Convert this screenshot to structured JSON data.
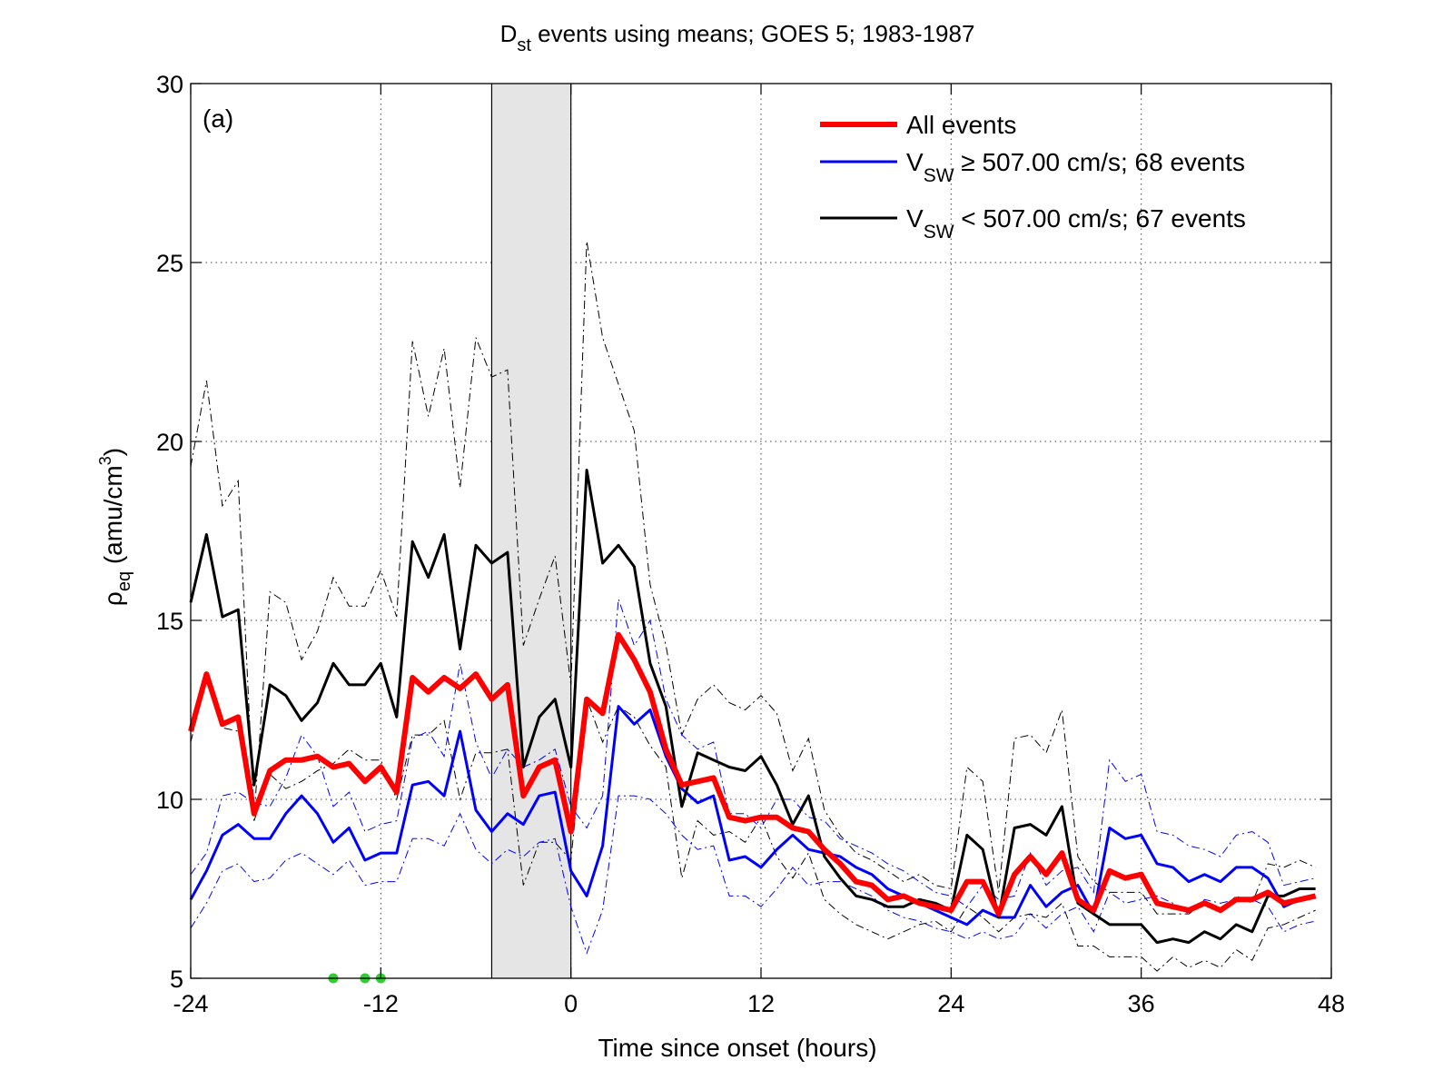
{
  "chart_data": {
    "type": "line",
    "title": {
      "main": "D",
      "sub": "st",
      "rest": " events using means; GOES 5; 1983-1987"
    },
    "panel_label": "(a)",
    "xlabel": "Time since onset (hours)",
    "ylabel": {
      "main": "ρ",
      "sub": "eq",
      "unit": " (amu/cm",
      "sup": "3",
      "close": ")"
    },
    "xlim": [
      -24,
      48
    ],
    "ylim": [
      5,
      30
    ],
    "xticks": [
      -24,
      -12,
      0,
      12,
      24,
      36,
      48
    ],
    "yticks": [
      5,
      10,
      15,
      20,
      25,
      30
    ],
    "grid": true,
    "legend_position": "top-right",
    "shaded_interval": [
      -5,
      0
    ],
    "green_markers": {
      "color": "#33cc33",
      "x": [
        -15,
        -13,
        -12
      ],
      "y": [
        5,
        5,
        5
      ]
    },
    "x": [
      -24,
      -23,
      -22,
      -21,
      -20,
      -19,
      -18,
      -17,
      -16,
      -15,
      -14,
      -13,
      -12,
      -11,
      -10,
      -9,
      -8,
      -7,
      -6,
      -5,
      -4,
      -3,
      -2,
      -1,
      0,
      1,
      2,
      3,
      4,
      5,
      6,
      7,
      8,
      9,
      10,
      11,
      12,
      13,
      14,
      15,
      16,
      17,
      18,
      19,
      20,
      21,
      22,
      23,
      24,
      25,
      26,
      27,
      28,
      29,
      30,
      31,
      32,
      33,
      34,
      35,
      36,
      37,
      38,
      39,
      40,
      41,
      42,
      43,
      44,
      45,
      46,
      47
    ],
    "series": [
      {
        "name": "All events",
        "legend": {
          "main": "All events",
          "sub": "",
          "rest": ""
        },
        "color": "#ff0000",
        "width": 6,
        "values": [
          11.9,
          13.5,
          12.1,
          12.3,
          9.6,
          10.8,
          11.1,
          11.1,
          11.2,
          10.9,
          11.0,
          10.5,
          10.9,
          10.2,
          13.4,
          13.0,
          13.4,
          13.1,
          13.5,
          12.8,
          13.2,
          10.1,
          10.9,
          11.1,
          9.1,
          12.8,
          12.4,
          14.6,
          13.9,
          13.0,
          11.4,
          10.4,
          10.5,
          10.6,
          9.5,
          9.4,
          9.5,
          9.5,
          9.2,
          9.1,
          8.6,
          8.2,
          7.7,
          7.6,
          7.2,
          7.3,
          7.1,
          7.0,
          6.9,
          7.7,
          7.7,
          6.8,
          7.9,
          8.4,
          7.9,
          8.5,
          7.2,
          6.9,
          8.0,
          7.8,
          7.9,
          7.1,
          7.0,
          6.9,
          7.1,
          6.9,
          7.2,
          7.2,
          7.4,
          7.1,
          7.2,
          7.3
        ]
      },
      {
        "name": "V_SW >= 507.00 cm/s; 68 events",
        "legend": {
          "main": "V",
          "sub": "SW",
          "rest": " ≥ 507.00 cm/s; 68 events"
        },
        "color": "#0000ff",
        "width": 3,
        "values": [
          7.2,
          8.0,
          9.0,
          9.3,
          8.9,
          8.9,
          9.6,
          10.1,
          9.6,
          8.8,
          9.2,
          8.3,
          8.5,
          8.5,
          10.4,
          10.5,
          10.1,
          11.9,
          9.7,
          9.1,
          9.6,
          9.3,
          10.1,
          10.2,
          8.0,
          7.3,
          8.7,
          12.6,
          12.1,
          12.5,
          11.2,
          10.3,
          9.9,
          10.1,
          8.3,
          8.4,
          8.1,
          8.6,
          9.0,
          8.6,
          8.5,
          8.4,
          8.1,
          7.9,
          7.5,
          7.3,
          7.1,
          6.9,
          6.7,
          6.5,
          6.9,
          6.7,
          6.7,
          7.6,
          7.0,
          7.4,
          7.6,
          6.8,
          9.2,
          8.9,
          9.0,
          8.2,
          8.1,
          7.7,
          7.9,
          7.7,
          8.1,
          8.1,
          7.8,
          7.0,
          7.2,
          7.3
        ]
      },
      {
        "name": "V_SW < 507.00 cm/s; 67 events",
        "legend": {
          "main": "V",
          "sub": "SW",
          "rest": " < 507.00 cm/s; 67 events"
        },
        "color": "#000000",
        "width": 3,
        "values": [
          15.5,
          17.4,
          15.1,
          15.3,
          10.4,
          13.2,
          12.9,
          12.2,
          12.7,
          13.8,
          13.2,
          13.2,
          13.8,
          12.3,
          17.2,
          16.2,
          17.4,
          14.2,
          17.1,
          16.6,
          16.9,
          10.9,
          12.3,
          12.8,
          10.9,
          19.2,
          16.6,
          17.1,
          16.5,
          13.8,
          12.6,
          9.8,
          11.3,
          11.1,
          10.9,
          10.8,
          11.2,
          10.4,
          9.3,
          10.1,
          8.4,
          7.8,
          7.3,
          7.2,
          7.0,
          7.0,
          7.2,
          7.1,
          6.9,
          9.0,
          8.6,
          6.7,
          9.2,
          9.3,
          9.0,
          9.8,
          7.1,
          6.8,
          6.5,
          6.5,
          6.5,
          6.0,
          6.1,
          6.0,
          6.3,
          6.1,
          6.5,
          6.3,
          7.3,
          7.3,
          7.5,
          7.5
        ]
      }
    ],
    "bands": [
      {
        "color": "#000000",
        "dash": "dashdot",
        "values": [
          19.3,
          21.7,
          18.2,
          18.9,
          9.5,
          15.8,
          15.5,
          13.9,
          14.7,
          16.2,
          15.4,
          15.4,
          16.4,
          15.1,
          22.8,
          20.7,
          22.6,
          18.7,
          22.9,
          21.8,
          22.0,
          14.3,
          15.6,
          16.8,
          13.2,
          25.6,
          22.9,
          21.6,
          20.3,
          16.0,
          14.3,
          11.8,
          12.8,
          13.2,
          12.7,
          12.5,
          12.9,
          12.4,
          10.8,
          11.7,
          9.7,
          9.0,
          8.5,
          8.3,
          8.0,
          7.7,
          7.9,
          7.6,
          7.5,
          10.9,
          10.5,
          7.4,
          11.7,
          11.8,
          11.3,
          12.5,
          8.4,
          7.7,
          7.4,
          7.4,
          7.4,
          6.8,
          6.8,
          6.8,
          7.1,
          6.9,
          7.3,
          7.1,
          8.2,
          8.1,
          8.3,
          8.1
        ]
      },
      {
        "color": "#000000",
        "dash": "dashdot",
        "values": [
          11.6,
          13.4,
          12.0,
          11.9,
          9.4,
          10.7,
          10.3,
          10.5,
          10.8,
          11.0,
          11.4,
          11.1,
          11.1,
          10.0,
          11.8,
          11.8,
          12.2,
          10.0,
          11.3,
          11.3,
          11.4,
          7.6,
          8.8,
          8.8,
          8.3,
          12.8,
          11.6,
          12.6,
          12.3,
          11.5,
          10.9,
          7.8,
          9.4,
          9.0,
          9.1,
          8.8,
          9.5,
          8.4,
          7.8,
          8.5,
          7.2,
          6.8,
          6.5,
          6.3,
          6.1,
          6.3,
          6.5,
          6.6,
          6.3,
          7.0,
          6.7,
          6.3,
          6.7,
          6.8,
          6.7,
          7.1,
          5.9,
          5.9,
          5.6,
          5.6,
          5.6,
          5.2,
          5.6,
          5.3,
          5.5,
          5.3,
          5.8,
          5.5,
          6.4,
          6.5,
          6.7,
          6.9
        ]
      },
      {
        "color": "#0000ff",
        "dash": "dashdot",
        "values": [
          7.9,
          8.5,
          10.1,
          10.2,
          9.9,
          9.8,
          10.6,
          11.8,
          11.2,
          9.8,
          10.2,
          9.1,
          9.3,
          9.4,
          11.7,
          11.9,
          11.2,
          13.8,
          11.6,
          10.6,
          11.4,
          10.9,
          11.1,
          11.4,
          9.8,
          9.2,
          10.1,
          15.6,
          14.3,
          15.0,
          12.8,
          11.8,
          11.4,
          11.6,
          9.6,
          9.6,
          9.2,
          10.0,
          10.0,
          9.5,
          9.4,
          8.9,
          8.7,
          8.5,
          8.2,
          8.0,
          7.7,
          7.4,
          7.3,
          7.0,
          7.6,
          7.2,
          7.3,
          8.5,
          7.6,
          8.0,
          8.1,
          7.4,
          11.1,
          10.5,
          10.7,
          9.1,
          9.0,
          8.7,
          8.6,
          8.4,
          9.0,
          9.1,
          8.8,
          7.6,
          7.7,
          7.8
        ]
      },
      {
        "color": "#0000ff",
        "dash": "dashdot",
        "values": [
          6.4,
          7.1,
          8.0,
          8.2,
          7.7,
          7.8,
          8.3,
          8.5,
          8.2,
          7.9,
          8.3,
          7.6,
          7.7,
          7.7,
          8.9,
          8.9,
          8.7,
          9.6,
          8.6,
          8.2,
          8.6,
          8.4,
          8.8,
          8.9,
          7.0,
          5.7,
          6.9,
          10.1,
          10.1,
          10.0,
          9.6,
          9.0,
          8.6,
          8.7,
          7.3,
          7.3,
          7.0,
          7.5,
          8.1,
          7.6,
          7.7,
          7.7,
          7.5,
          7.3,
          6.9,
          6.7,
          6.6,
          6.4,
          6.3,
          6.1,
          6.3,
          6.1,
          6.2,
          6.8,
          6.4,
          6.8,
          7.0,
          6.3,
          7.4,
          7.1,
          7.2,
          7.3,
          7.1,
          6.8,
          7.2,
          7.1,
          7.2,
          7.2,
          7.0,
          6.3,
          6.5,
          6.6
        ]
      }
    ]
  }
}
